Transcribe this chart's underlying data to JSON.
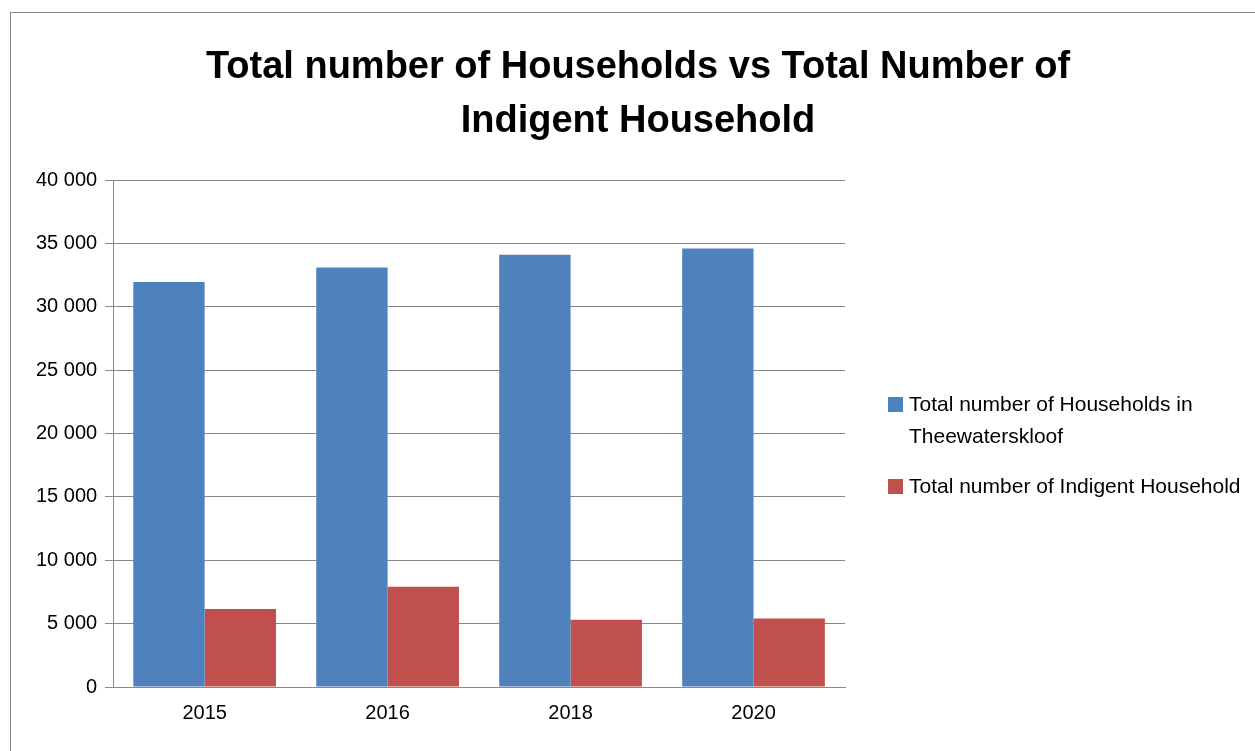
{
  "chart_data": {
    "type": "bar",
    "title": "Total number of Households vs Total Number of Indigent Household",
    "categories": [
      "2015",
      "2016",
      "2018",
      "2020"
    ],
    "series": [
      {
        "name": "Total number of Households in Theewaterskloof",
        "color": "#4f81bd",
        "values": [
          31950,
          33100,
          34100,
          34600
        ]
      },
      {
        "name": "Total number of Indigent Household",
        "color": "#c0504d",
        "values": [
          6150,
          7900,
          5300,
          5400
        ]
      }
    ],
    "ylim": [
      0,
      40000
    ],
    "yticks": [
      {
        "value": 0,
        "label": "0"
      },
      {
        "value": 5000,
        "label": "5 000"
      },
      {
        "value": 10000,
        "label": "10 000"
      },
      {
        "value": 15000,
        "label": "15 000"
      },
      {
        "value": 20000,
        "label": "20 000"
      },
      {
        "value": 25000,
        "label": "25 000"
      },
      {
        "value": 30000,
        "label": "30 000"
      },
      {
        "value": 35000,
        "label": "35 000"
      },
      {
        "value": 40000,
        "label": "40 000"
      }
    ],
    "grid": "y",
    "legend": "right"
  }
}
